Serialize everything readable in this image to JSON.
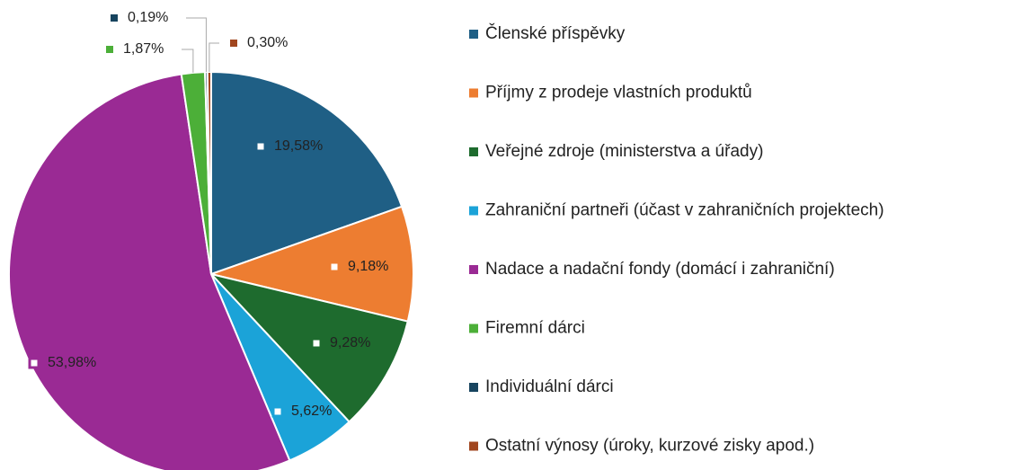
{
  "chart_data": {
    "type": "pie",
    "categories": [
      "Členské příspěvky",
      "Příjmy z prodeje vlastních produktů",
      "Veřejné zdroje (ministerstva a úřady)",
      "Zahraniční partneři (účast v zahraničních projektech)",
      "Nadace a nadační fondy (domácí i zahraniční)",
      "Firemní dárci",
      "Individuální dárci",
      "Ostatní výnosy (úroky, kurzové zisky apod.)"
    ],
    "values": [
      19.58,
      9.18,
      9.28,
      5.62,
      53.98,
      1.87,
      0.19,
      0.3
    ],
    "value_labels": [
      "19,58%",
      "9,18%",
      "9,28%",
      "5,62%",
      "53,98%",
      "1,87%",
      "0,19%",
      "0,30%"
    ],
    "colors": [
      "#1f5f85",
      "#ed7d31",
      "#1e6b2e",
      "#1ba3d8",
      "#9a2a94",
      "#4caf38",
      "#17445f",
      "#a1461f"
    ],
    "legend": "right"
  }
}
